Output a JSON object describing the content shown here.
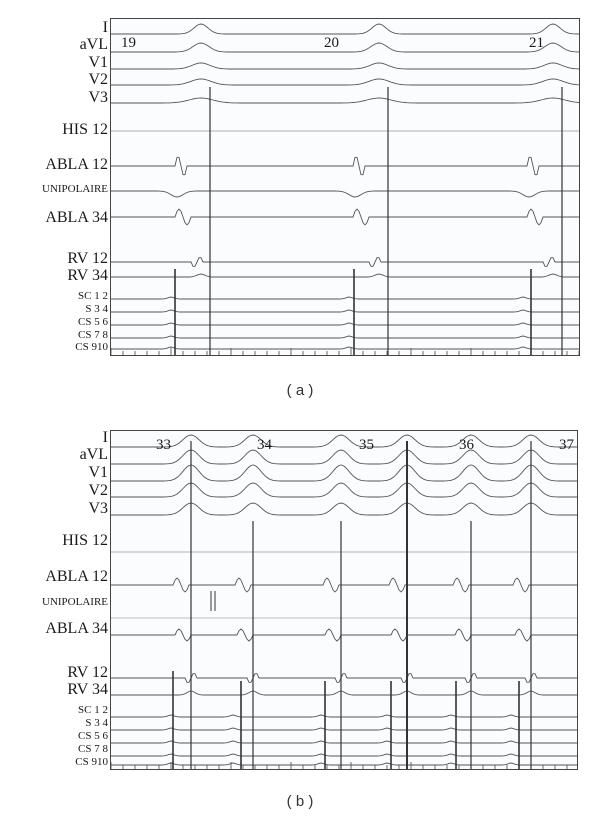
{
  "figure": {
    "panels": [
      {
        "caption": "( a )",
        "beat_numbers": [
          "19",
          "20",
          "21"
        ],
        "channels": [
          "I",
          "aVL",
          "V1",
          "V2",
          "V3",
          "HIS 12",
          "ABLA 12",
          "UNIPOLAIRE",
          "ABLA 34",
          "RV 12",
          "RV 34",
          "SC 1 2",
          "S 3 4",
          "CS 5 6",
          "CS 7 8",
          "CS 910"
        ]
      },
      {
        "caption": "( b )",
        "beat_numbers": [
          "33",
          "34",
          "35",
          "36",
          "37"
        ],
        "channels": [
          "I",
          "aVL",
          "V1",
          "V2",
          "V3",
          "HIS 12",
          "ABLA 12",
          "UNIPOLAIRE",
          "ABLA 34",
          "RV 12",
          "RV 34",
          "SC 1 2",
          "S 3 4",
          "CS 5 6",
          "CS 7 8",
          "CS 910"
        ]
      }
    ]
  }
}
